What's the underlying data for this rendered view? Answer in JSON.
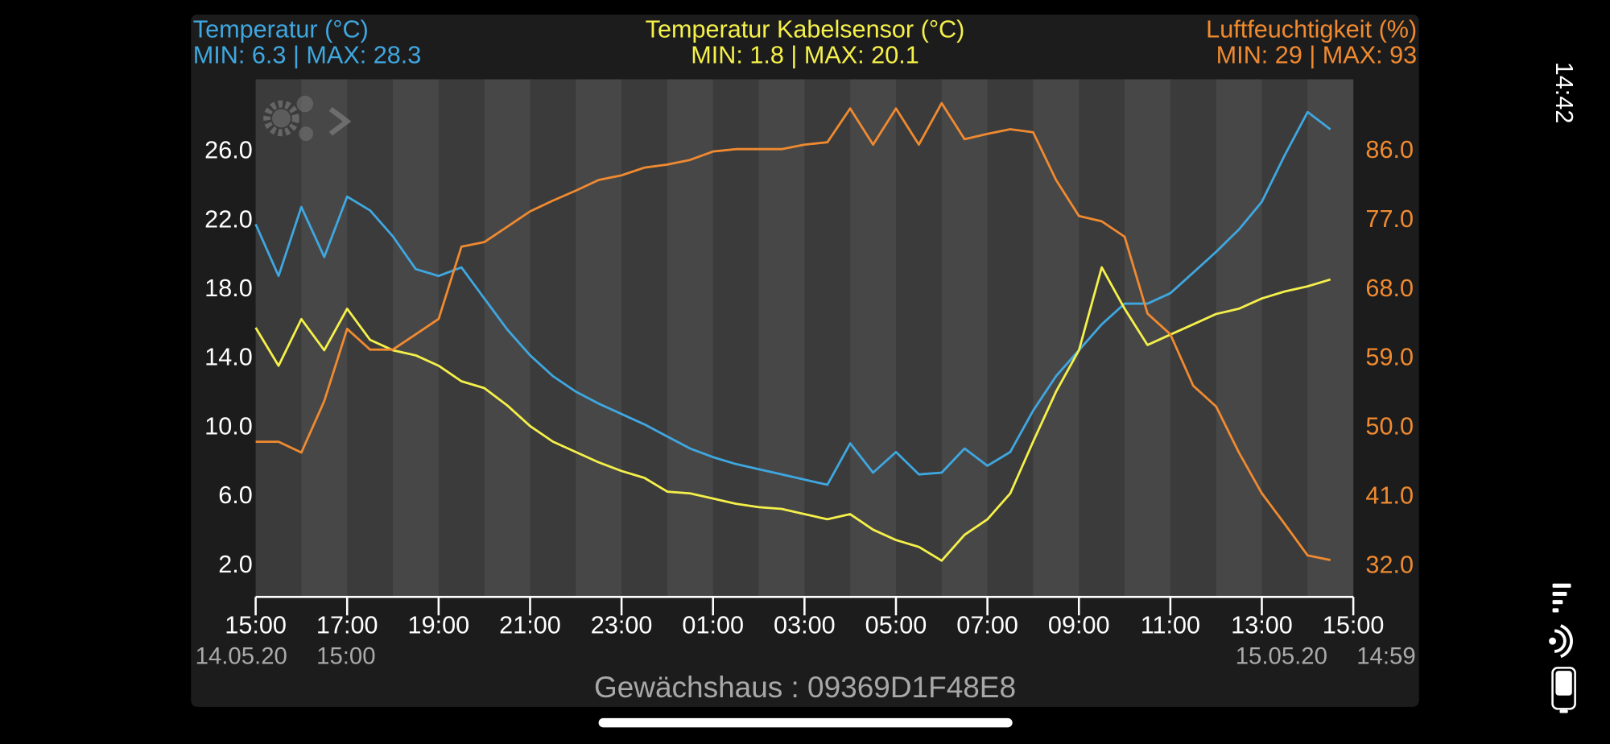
{
  "status_bar": {
    "time": "14:42"
  },
  "chart_data": {
    "type": "line",
    "title": "Gewächshaus : 09369D1F48E8",
    "range_start": {
      "date": "14.05.20",
      "time": "15:00"
    },
    "range_end": {
      "date": "15.05.20",
      "time": "14:59"
    },
    "x": [
      "14.05.20 15:00",
      "14.05.20 15:30",
      "14.05.20 16:00",
      "14.05.20 16:30",
      "14.05.20 17:00",
      "14.05.20 17:30",
      "14.05.20 18:00",
      "14.05.20 18:30",
      "14.05.20 19:00",
      "14.05.20 19:30",
      "14.05.20 20:00",
      "14.05.20 20:30",
      "14.05.20 21:00",
      "14.05.20 21:30",
      "14.05.20 22:00",
      "14.05.20 22:30",
      "14.05.20 23:00",
      "14.05.20 23:30",
      "15.05.20 00:00",
      "15.05.20 00:30",
      "15.05.20 01:00",
      "15.05.20 01:30",
      "15.05.20 02:00",
      "15.05.20 02:30",
      "15.05.20 03:00",
      "15.05.20 03:30",
      "15.05.20 04:00",
      "15.05.20 04:30",
      "15.05.20 05:00",
      "15.05.20 05:30",
      "15.05.20 06:00",
      "15.05.20 06:30",
      "15.05.20 07:00",
      "15.05.20 07:30",
      "15.05.20 08:00",
      "15.05.20 08:30",
      "15.05.20 09:00",
      "15.05.20 09:30",
      "15.05.20 10:00",
      "15.05.20 10:30",
      "15.05.20 11:00",
      "15.05.20 11:30",
      "15.05.20 12:00",
      "15.05.20 12:30",
      "15.05.20 13:00",
      "15.05.20 13:30",
      "15.05.20 14:00",
      "15.05.20 14:30"
    ],
    "series": [
      {
        "name": "Temperatur (°C)",
        "stats": "MIN: 6.3 | MAX: 28.3",
        "color": "#3fa7e0",
        "values": [
          21.8,
          18.8,
          22.8,
          19.9,
          23.4,
          22.6,
          21.1,
          19.2,
          18.8,
          19.3,
          17.5,
          15.7,
          14.2,
          13.0,
          12.1,
          11.4,
          10.8,
          10.2,
          9.5,
          8.8,
          8.3,
          7.9,
          7.6,
          7.3,
          7.0,
          6.7,
          9.1,
          7.4,
          8.6,
          7.3,
          7.4,
          8.8,
          7.8,
          8.6,
          11.0,
          13.0,
          14.5,
          16.0,
          17.2,
          17.2,
          17.8,
          19.0,
          20.2,
          21.5,
          23.1,
          25.8,
          28.3,
          27.3
        ]
      },
      {
        "name": "Temperatur Kabelsensor (°C)",
        "stats": "MIN: 1.8 | MAX: 20.1",
        "color": "#f5f04a",
        "values": [
          15.8,
          13.6,
          16.3,
          14.5,
          16.9,
          15.1,
          14.5,
          14.2,
          13.6,
          12.7,
          12.3,
          11.3,
          10.1,
          9.2,
          8.6,
          8.0,
          7.5,
          7.1,
          6.3,
          6.2,
          5.9,
          5.6,
          5.4,
          5.3,
          5.0,
          4.7,
          5.0,
          4.1,
          3.5,
          3.1,
          2.3,
          3.8,
          4.7,
          6.2,
          9.2,
          12.1,
          14.5,
          19.3,
          16.9,
          14.8,
          15.4,
          16.0,
          16.6,
          16.9,
          17.5,
          17.9,
          18.2,
          18.6
        ]
      },
      {
        "name": "Luftfeuchtigkeit (%)",
        "stats": "MIN: 29 | MAX: 93",
        "color": "#f08a30",
        "axis": "y2",
        "values": [
          48.2,
          48.2,
          46.8,
          53.5,
          62.9,
          60.2,
          60.2,
          62.2,
          64.2,
          73.6,
          74.2,
          76.2,
          78.2,
          79.6,
          80.9,
          82.3,
          82.9,
          83.9,
          84.3,
          84.9,
          86.0,
          86.3,
          86.3,
          86.3,
          86.9,
          87.2,
          91.6,
          86.9,
          91.6,
          86.9,
          92.3,
          87.6,
          88.3,
          88.9,
          88.5,
          82.3,
          77.6,
          76.9,
          74.9,
          64.9,
          62.2,
          55.5,
          52.8,
          46.8,
          41.5,
          37.5,
          33.4,
          32.8
        ]
      }
    ],
    "xlim": [
      "14.05.20 15:00",
      "15.05.20 15:00"
    ],
    "xticks": [
      {
        "value": "14.05.20 15:00",
        "label": "15:00"
      },
      {
        "value": "14.05.20 17:00",
        "label": "17:00"
      },
      {
        "value": "14.05.20 19:00",
        "label": "19:00"
      },
      {
        "value": "14.05.20 21:00",
        "label": "21:00"
      },
      {
        "value": "14.05.20 23:00",
        "label": "23:00"
      },
      {
        "value": "15.05.20 01:00",
        "label": "01:00"
      },
      {
        "value": "15.05.20 03:00",
        "label": "03:00"
      },
      {
        "value": "15.05.20 05:00",
        "label": "05:00"
      },
      {
        "value": "15.05.20 07:00",
        "label": "07:00"
      },
      {
        "value": "15.05.20 09:00",
        "label": "09:00"
      },
      {
        "value": "15.05.20 11:00",
        "label": "11:00"
      },
      {
        "value": "15.05.20 13:00",
        "label": "13:00"
      },
      {
        "value": "15.05.20 15:00",
        "label": "15:00"
      }
    ],
    "ylim": [
      0.2,
      30.2
    ],
    "yticks": [
      {
        "value": 2,
        "label": "2.0"
      },
      {
        "value": 6,
        "label": "6.0"
      },
      {
        "value": 10,
        "label": "10.0"
      },
      {
        "value": 14,
        "label": "14.0"
      },
      {
        "value": 18,
        "label": "18.0"
      },
      {
        "value": 22,
        "label": "22.0"
      },
      {
        "value": 26,
        "label": "26.0"
      }
    ],
    "y2lim": [
      28,
      95.4
    ],
    "y2ticks": [
      {
        "value": 32,
        "label": "32.0"
      },
      {
        "value": 41,
        "label": "41.0"
      },
      {
        "value": 50,
        "label": "50.0"
      },
      {
        "value": 59,
        "label": "59.0"
      },
      {
        "value": 68,
        "label": "68.0"
      },
      {
        "value": 77,
        "label": "77.0"
      },
      {
        "value": 86,
        "label": "86.0"
      }
    ]
  }
}
